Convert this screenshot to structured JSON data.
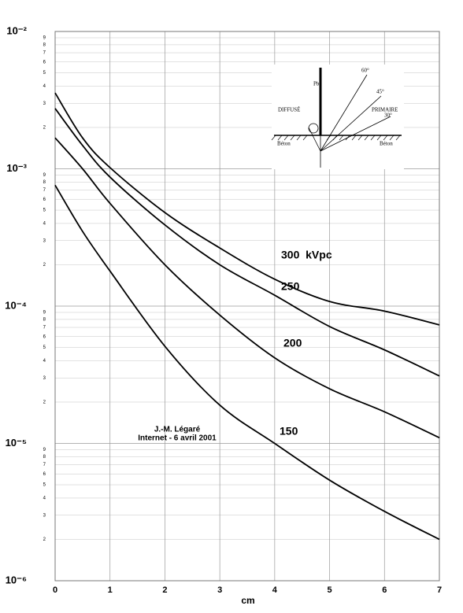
{
  "chart_data": {
    "type": "line",
    "x_label": "cm",
    "x": [
      0,
      0.5,
      1,
      2,
      3,
      4,
      5,
      6,
      7
    ],
    "series": [
      {
        "name": "300  kVpc",
        "color": "#000000",
        "values": [
          0.00357,
          0.00168,
          0.00102,
          0.00048,
          0.000265,
          0.000157,
          0.000108,
          9.2e-05,
          7.3e-05
        ]
      },
      {
        "name": "250",
        "color": "#000000",
        "values": [
          0.00275,
          0.00148,
          0.00087,
          0.00039,
          0.0002,
          0.00012,
          7.1e-05,
          4.8e-05,
          3.1e-05
        ]
      },
      {
        "name": "200",
        "color": "#000000",
        "values": [
          0.00168,
          0.001,
          0.00056,
          0.0002,
          8.6e-05,
          4.2e-05,
          2.5e-05,
          1.7e-05,
          1.1e-05
        ]
      },
      {
        "name": "150",
        "color": "#000000",
        "values": [
          0.00076,
          0.00035,
          0.00018,
          5.1e-05,
          1.9e-05,
          1e-05,
          5.4e-06,
          3.2e-06,
          2e-06
        ]
      }
    ],
    "xlim": [
      0,
      7
    ],
    "xticks": [
      0,
      1,
      2,
      3,
      4,
      5,
      6,
      7
    ],
    "ylim": [
      1e-06,
      0.01
    ],
    "log_y": true,
    "grid": true,
    "yticks": [
      {
        "value": 1e-06,
        "label": "10⁻⁶"
      },
      {
        "value": 1e-05,
        "label": "10⁻⁵"
      },
      {
        "value": 0.0001,
        "label": "10⁻⁴"
      },
      {
        "value": 0.001,
        "label": "10⁻³"
      },
      {
        "value": 0.01,
        "label": "10⁻²"
      }
    ],
    "yminor_ticks": [
      {
        "value": 2e-06,
        "label": "2"
      },
      {
        "value": 3e-06,
        "label": "3"
      },
      {
        "value": 4e-06,
        "label": "4"
      },
      {
        "value": 5e-06,
        "label": "5"
      },
      {
        "value": 6e-06,
        "label": "6"
      },
      {
        "value": 7e-06,
        "label": "7"
      },
      {
        "value": 8e-06,
        "label": "8"
      },
      {
        "value": 9e-06,
        "label": "9"
      },
      {
        "value": 2e-05,
        "label": "2"
      },
      {
        "value": 3e-05,
        "label": "3"
      },
      {
        "value": 4e-05,
        "label": "4"
      },
      {
        "value": 5e-05,
        "label": "5"
      },
      {
        "value": 6e-05,
        "label": "6"
      },
      {
        "value": 7e-05,
        "label": "7"
      },
      {
        "value": 8e-05,
        "label": "8"
      },
      {
        "value": 9e-05,
        "label": "9"
      },
      {
        "value": 0.0002,
        "label": "2"
      },
      {
        "value": 0.0003,
        "label": "3"
      },
      {
        "value": 0.0004,
        "label": "4"
      },
      {
        "value": 0.0005,
        "label": "5"
      },
      {
        "value": 0.0006,
        "label": "6"
      },
      {
        "value": 0.0007,
        "label": "7"
      },
      {
        "value": 0.0008,
        "label": "8"
      },
      {
        "value": 0.0009,
        "label": "9"
      },
      {
        "value": 0.002,
        "label": "2"
      },
      {
        "value": 0.003,
        "label": "3"
      },
      {
        "value": 0.004,
        "label": "4"
      },
      {
        "value": 0.005,
        "label": "5"
      },
      {
        "value": 0.006,
        "label": "6"
      },
      {
        "value": 0.007,
        "label": "7"
      },
      {
        "value": 0.008,
        "label": "8"
      },
      {
        "value": 0.009,
        "label": "9"
      }
    ],
    "annotations": [
      "J.-M. Légaré",
      "Internet - 6 avril 2001"
    ],
    "inset_labels": [
      "Pb",
      "DIFFUSÉ",
      "60°",
      "45°",
      "PRIMAIRE",
      "30°",
      "Béton",
      "Béton"
    ]
  }
}
